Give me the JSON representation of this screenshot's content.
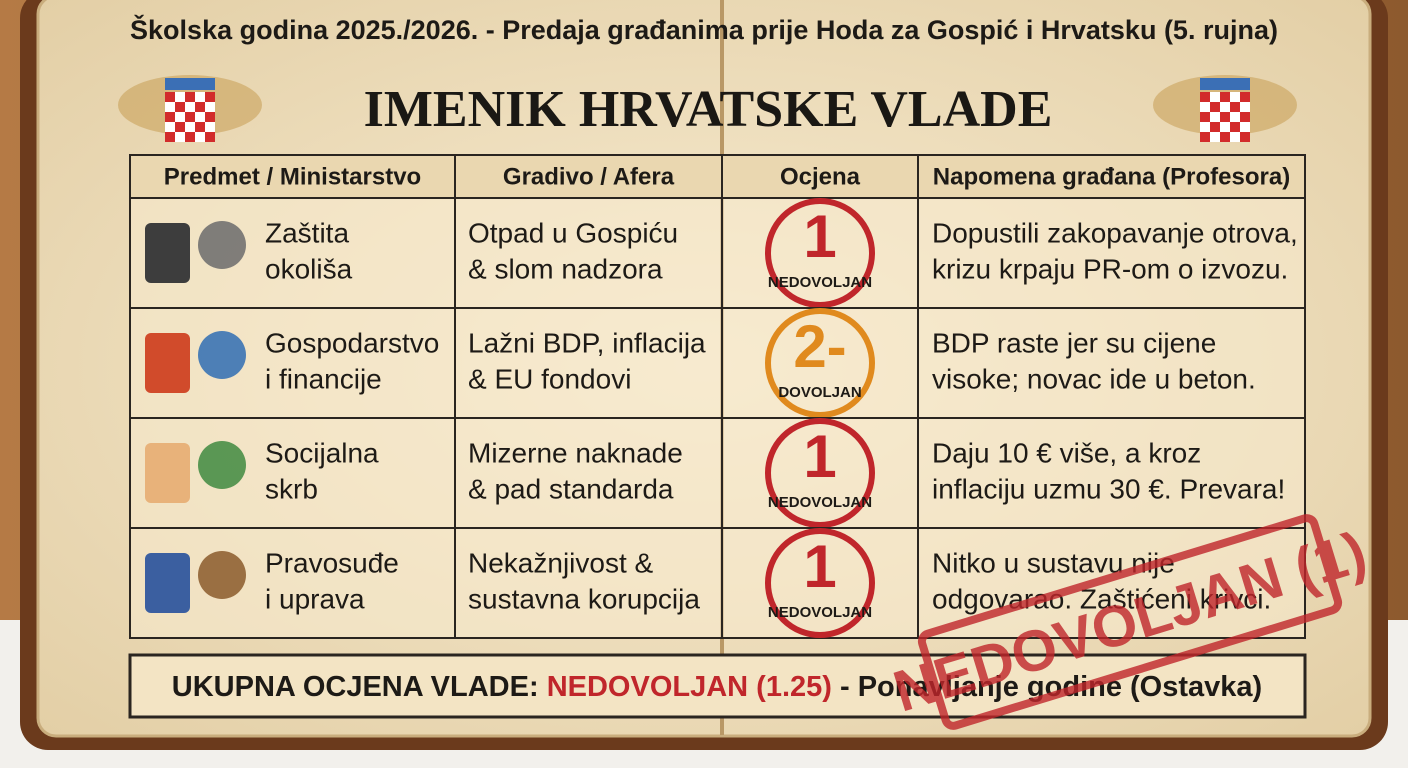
{
  "header": {
    "subtitle": "Školska godina 2025./2026. - Predaja građanima prije Hoda za Gospić i Hrvatsku (5. rujna)",
    "title": "IMENIK HRVATSKE VLADE"
  },
  "table": {
    "columns": [
      "Predmet / Ministarstvo",
      "Gradivo / Afera",
      "Ocjena",
      "Napomena građana (Profesora)"
    ],
    "rows": [
      {
        "subject": [
          "Zaštita",
          "okoliša"
        ],
        "topic": [
          "Otpad u Gospiću",
          "& slom nadzora"
        ],
        "grade": "1",
        "grade_label": "NEDOVOLJAN",
        "note": [
          "Dopustili zakopavanje otrova,",
          "krizu krpaju PR-om o izvozu."
        ]
      },
      {
        "subject": [
          "Gospodarstvo",
          "i financije"
        ],
        "topic": [
          "Lažni BDP, inflacija",
          "& EU fondovi"
        ],
        "grade": "2-",
        "grade_label": "DOVOLJAN",
        "note": [
          "BDP raste jer su cijene",
          "visoke; novac ide u beton."
        ]
      },
      {
        "subject": [
          "Socijalna",
          "skrb"
        ],
        "topic": [
          "Mizerne naknade",
          "& pad standarda"
        ],
        "grade": "1",
        "grade_label": "NEDOVOLJAN",
        "note": [
          "Daju 10 € više, a kroz",
          "inflaciju uzmu 30 €. Prevara!"
        ]
      },
      {
        "subject": [
          "Pravosuđe",
          "i uprava"
        ],
        "topic": [
          "Nekažnjivost &",
          "sustavna korupcija"
        ],
        "grade": "1",
        "grade_label": "NEDOVOLJAN",
        "note": [
          "Nitko u sustavu nije",
          "odgovarao. Zaštićeni krivci."
        ]
      }
    ]
  },
  "summary": {
    "prefix": "UKUPNA OCJENA VLADE:",
    "verdict": "NEDOVOLJAN (1.25)",
    "suffix": "- Ponavljanje godine (Ostavka)"
  },
  "stamp": "NEDOVOLJAN (1)"
}
